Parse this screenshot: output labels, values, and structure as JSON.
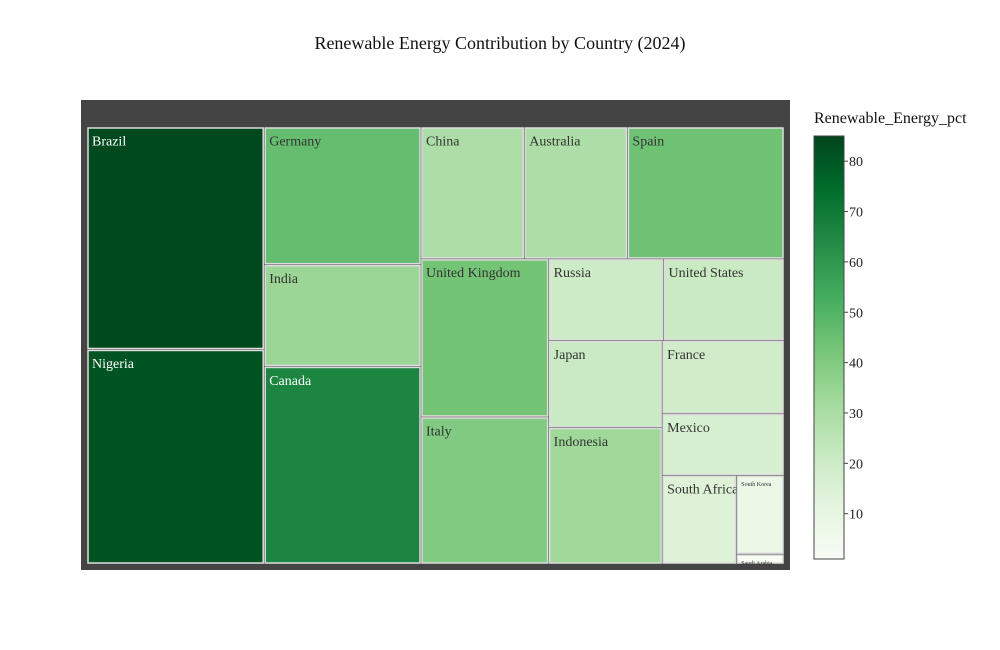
{
  "chart_data": {
    "type": "treemap",
    "title": "Renewable Energy Contribution by Country (2024)",
    "color_variable": "Renewable_Energy_pct",
    "colorscale": [
      "#f7fcf5",
      "#e5f5e0",
      "#c7e9c0",
      "#a1d99b",
      "#74c476",
      "#41ab5d",
      "#238b45",
      "#006d2c",
      "#00441b"
    ],
    "color_range": [
      1,
      85
    ],
    "colorbar_ticks": [
      10,
      20,
      30,
      40,
      50,
      60,
      70,
      80
    ],
    "background": "#444444",
    "items": [
      {
        "label": "Brazil",
        "value": 84,
        "color": 84
      },
      {
        "label": "Nigeria",
        "value": 81,
        "color": 81
      },
      {
        "label": "Germany",
        "value": 46,
        "color": 46
      },
      {
        "label": "India",
        "value": 34,
        "color": 34
      },
      {
        "label": "Canada",
        "value": 66,
        "color": 66
      },
      {
        "label": "China",
        "value": 29,
        "color": 29
      },
      {
        "label": "Australia",
        "value": 29,
        "color": 29
      },
      {
        "label": "Spain",
        "value": 44,
        "color": 44
      },
      {
        "label": "United Kingdom",
        "value": 43,
        "color": 43
      },
      {
        "label": "Italy",
        "value": 40,
        "color": 40
      },
      {
        "label": "Russia",
        "value": 20,
        "color": 20
      },
      {
        "label": "United States",
        "value": 21,
        "color": 21
      },
      {
        "label": "Japan",
        "value": 21,
        "color": 21
      },
      {
        "label": "Indonesia",
        "value": 33,
        "color": 33
      },
      {
        "label": "France",
        "value": 19,
        "color": 19
      },
      {
        "label": "Mexico",
        "value": 16,
        "color": 16
      },
      {
        "label": "South Africa",
        "value": 14,
        "color": 14
      },
      {
        "label": "South Korea",
        "value": 8,
        "color": 8
      },
      {
        "label": "Saudi Arabia",
        "value": 1,
        "color": 1
      }
    ]
  }
}
